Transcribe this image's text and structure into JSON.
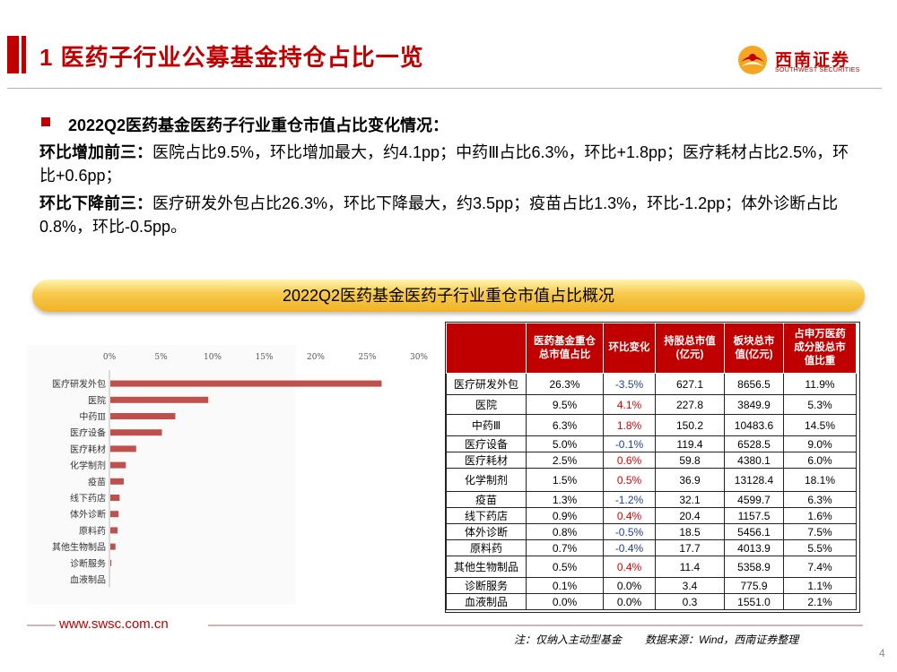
{
  "header": {
    "title": "1 医药子行业公募基金持仓占比一览",
    "logo_name": "西南证券",
    "logo_sub": "SOUTHWEST SECURITIES"
  },
  "summary": {
    "heading": "2022Q2医药基金医药子行业重仓市值占比变化情况：",
    "increase_label": "环比增加前三：",
    "increase_text": "医院占比9.5%，环比增加最大，约4.1pp；中药Ⅲ占比6.3%，环比+1.8pp；医疗耗材占比2.5%，环比+0.6pp；",
    "decrease_label": "环比下降前三：",
    "decrease_text": "医疗研发外包占比26.3%，环比下降最大，约3.5pp；疫苗占比1.3%，环比-1.2pp；体外诊断占比0.8%，环比-0.5pp。"
  },
  "banner": {
    "title": "2022Q2医药基金医药子行业重仓市值占比概况"
  },
  "chart_data": {
    "type": "bar",
    "orientation": "horizontal",
    "categories": [
      "医疗研发外包",
      "医院",
      "中药Ⅲ",
      "医疗设备",
      "医疗耗材",
      "化学制剂",
      "疫苗",
      "线下药店",
      "体外诊断",
      "原料药",
      "其他生物制品",
      "诊断服务",
      "血液制品"
    ],
    "values": [
      26.3,
      9.5,
      6.3,
      5.0,
      2.5,
      1.5,
      1.3,
      0.9,
      0.8,
      0.7,
      0.5,
      0.1,
      0.0
    ],
    "xticks": [
      "0%",
      "5%",
      "10%",
      "15%",
      "20%",
      "25%",
      "30%"
    ],
    "xlim": [
      0,
      30
    ],
    "bar_color": "#c0504d",
    "title": "",
    "xlabel": "",
    "ylabel": ""
  },
  "table": {
    "headers": [
      "",
      "医药基金重仓\n总市值占比",
      "环比变化",
      "持股总市值\n(亿元)",
      "板块总市\n值(亿元)",
      "占申万医药\n成分股总市\n值比重"
    ],
    "rows": [
      [
        "医疗研发外包",
        "26.3%",
        "-3.5%",
        "627.1",
        "8656.5",
        "11.9%"
      ],
      [
        "医院",
        "9.5%",
        "4.1%",
        "227.8",
        "3849.9",
        "5.3%"
      ],
      [
        "中药Ⅲ",
        "6.3%",
        "1.8%",
        "150.2",
        "10483.6",
        "14.5%"
      ],
      [
        "医疗设备",
        "5.0%",
        "-0.1%",
        "119.4",
        "6528.5",
        "9.0%"
      ],
      [
        "医疗耗材",
        "2.5%",
        "0.6%",
        "59.8",
        "4380.1",
        "6.0%"
      ],
      [
        "化学制剂",
        "1.5%",
        "0.5%",
        "36.9",
        "13128.4",
        "18.1%"
      ],
      [
        "疫苗",
        "1.3%",
        "-1.2%",
        "32.1",
        "4599.7",
        "6.3%"
      ],
      [
        "线下药店",
        "0.9%",
        "0.4%",
        "20.4",
        "1157.5",
        "1.6%"
      ],
      [
        "体外诊断",
        "0.8%",
        "-0.5%",
        "18.5",
        "5456.1",
        "7.5%"
      ],
      [
        "原料药",
        "0.7%",
        "-0.4%",
        "17.7",
        "4013.9",
        "5.5%"
      ],
      [
        "其他生物制品",
        "0.5%",
        "0.4%",
        "11.4",
        "5358.9",
        "7.4%"
      ],
      [
        "诊断服务",
        "0.1%",
        "0.0%",
        "3.4",
        "775.9",
        "1.1%"
      ],
      [
        "血液制品",
        "0.0%",
        "0.0%",
        "0.3",
        "1551.0",
        "2.1%"
      ]
    ],
    "change_colors": {
      "neg": "#1f3f99",
      "pos": "#e00000",
      "zero": "#000000"
    }
  },
  "footer": {
    "url": "www.swsc.com.cn",
    "note": "注：仅纳入主动型基金",
    "source": "数据来源：Wind，西南证券整理",
    "page": "4"
  }
}
